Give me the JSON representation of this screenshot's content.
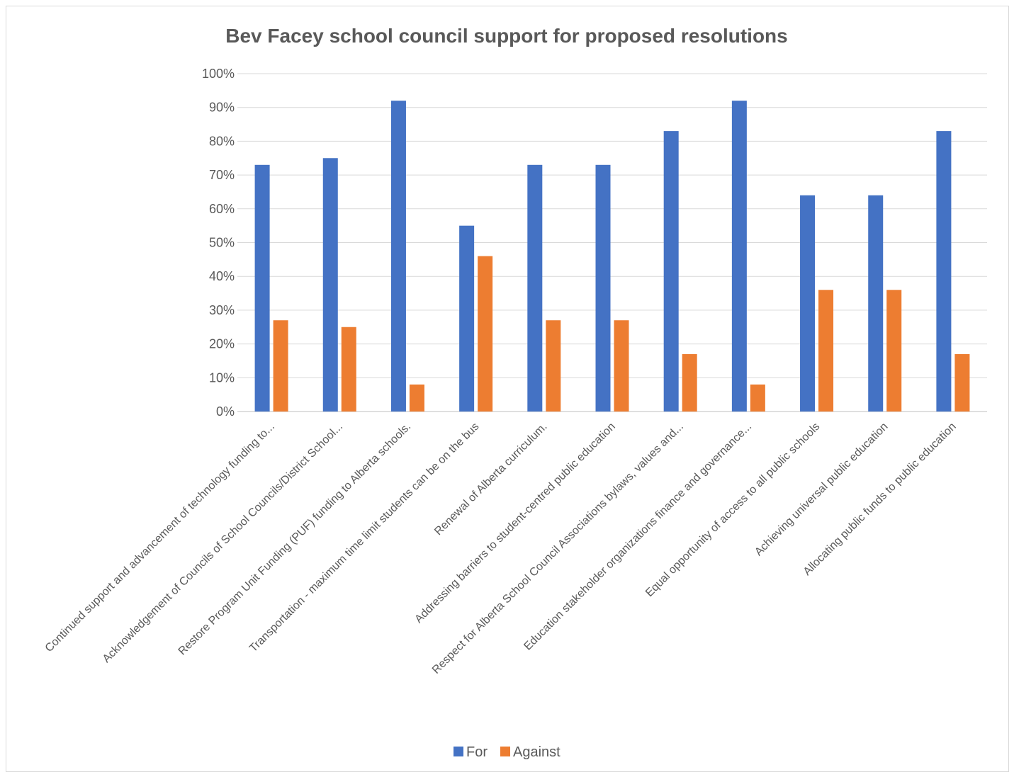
{
  "chart_data": {
    "type": "bar",
    "title": "Bev Facey school council support for proposed resolutions",
    "xlabel": "",
    "ylabel": "",
    "ylim": [
      0,
      100
    ],
    "yticks": [
      "0%",
      "10%",
      "20%",
      "30%",
      "40%",
      "50%",
      "60%",
      "70%",
      "80%",
      "90%",
      "100%"
    ],
    "grid": true,
    "legend_position": "bottom",
    "categories": [
      "Continued support and advancement of technology funding to...",
      "Acknowledgement of Councils of School Councils/District School...",
      "Restore Program Unit Funding (PUF) funding to Alberta schools.",
      "Transportation - maximum time limit students can be on the bus",
      "Renewal of Alberta curriculum.",
      "Addressing barriers to student-centred public education",
      "Respect for Alberta School Council Associations bylaws, values and...",
      "Education stakeholder organizations finance and governance...",
      "Equal opportunity of access to all public schools",
      "Achieving universal public education",
      "Allocating public funds to public education"
    ],
    "series": [
      {
        "name": "For",
        "color": "#4472C4",
        "values": [
          73,
          75,
          92,
          55,
          73,
          73,
          83,
          92,
          64,
          64,
          83
        ]
      },
      {
        "name": "Against",
        "color": "#ED7D31",
        "values": [
          27,
          25,
          8,
          46,
          27,
          27,
          17,
          8,
          36,
          36,
          17
        ]
      }
    ]
  }
}
